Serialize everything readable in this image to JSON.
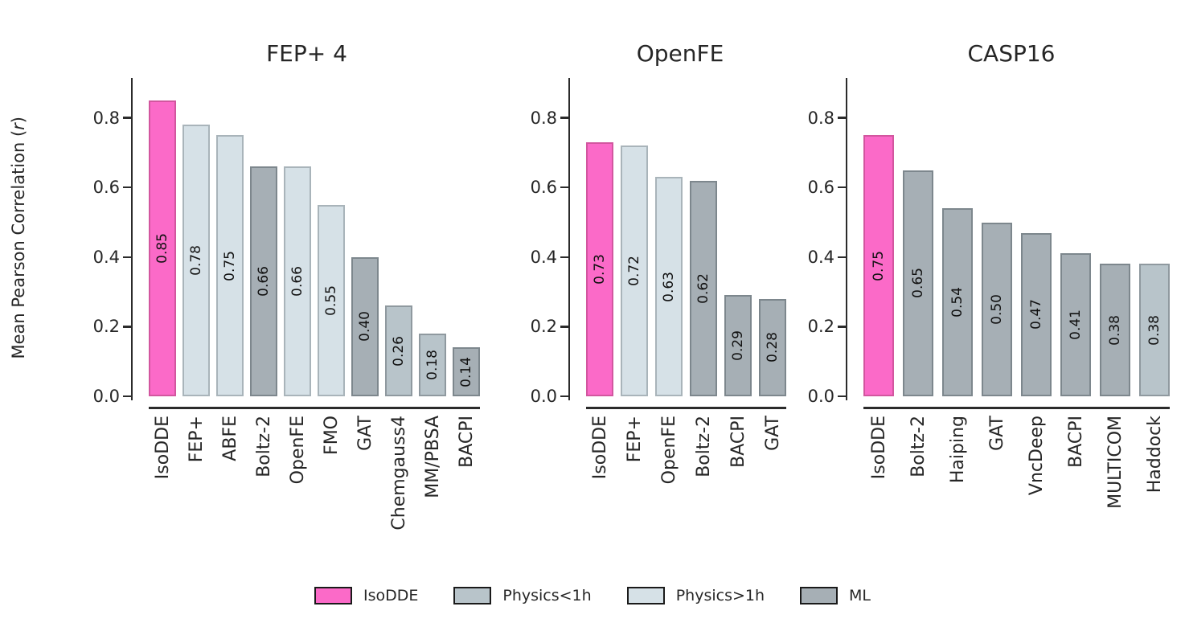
{
  "figure": {
    "ylabel_prefix": "Mean Pearson Correlation (",
    "ylabel_italic": "r",
    "ylabel_suffix": ")"
  },
  "chart_data": {
    "type": "bar",
    "title": "",
    "ylabel": "Mean Pearson Correlation (r)",
    "ylim": [
      0,
      0.92
    ],
    "yticks": [
      "0.0",
      "0.2",
      "0.4",
      "0.6",
      "0.8"
    ],
    "grid": false,
    "legend_position": "bottom-center",
    "palette": {
      "isodde": {
        "fill": "#FB6AC8",
        "border": "#D2569F"
      },
      "physics_lt1h": {
        "fill": "#B8C4CA",
        "border": "#8F999F"
      },
      "physics_gt1h": {
        "fill": "#D6E1E7",
        "border": "#A9B4BA"
      },
      "ml": {
        "fill": "#A6AFB5",
        "border": "#7D878D"
      }
    },
    "legend": [
      {
        "label": "IsoDDE",
        "group": "isodde"
      },
      {
        "label": "Physics<1h",
        "group": "physics_lt1h"
      },
      {
        "label": "Physics>1h",
        "group": "physics_gt1h"
      },
      {
        "label": "ML",
        "group": "ml"
      }
    ],
    "panels": [
      {
        "title": "FEP+ 4",
        "categories": [
          "IsoDDE",
          "FEP+",
          "ABFE",
          "Boltz-2",
          "OpenFE",
          "FMO",
          "GAT",
          "Chemgauss4",
          "MM/PBSA",
          "BACPI"
        ],
        "values": [
          0.85,
          0.78,
          0.75,
          0.66,
          0.66,
          0.55,
          0.4,
          0.26,
          0.18,
          0.14
        ],
        "value_labels": [
          "0.85",
          "0.78",
          "0.75",
          "0.66",
          "0.66",
          "0.55",
          "0.40",
          "0.26",
          "0.18",
          "0.14"
        ],
        "groups": [
          "isodde",
          "physics_gt1h",
          "physics_gt1h",
          "ml",
          "physics_gt1h",
          "physics_gt1h",
          "ml",
          "physics_lt1h",
          "physics_lt1h",
          "ml"
        ]
      },
      {
        "title": "OpenFE",
        "categories": [
          "IsoDDE",
          "FEP+",
          "OpenFE",
          "Boltz-2",
          "BACPI",
          "GAT"
        ],
        "values": [
          0.73,
          0.72,
          0.63,
          0.62,
          0.29,
          0.28
        ],
        "value_labels": [
          "0.73",
          "0.72",
          "0.63",
          "0.62",
          "0.29",
          "0.28"
        ],
        "groups": [
          "isodde",
          "physics_gt1h",
          "physics_gt1h",
          "ml",
          "ml",
          "ml"
        ]
      },
      {
        "title": "CASP16",
        "categories": [
          "IsoDDE",
          "Boltz-2",
          "Haiping",
          "GAT",
          "VncDeep",
          "BACPI",
          "MULTICOM",
          "Haddock"
        ],
        "values": [
          0.75,
          0.65,
          0.54,
          0.5,
          0.47,
          0.41,
          0.38,
          0.38
        ],
        "value_labels": [
          "0.75",
          "0.65",
          "0.54",
          "0.50",
          "0.47",
          "0.41",
          "0.38",
          "0.38"
        ],
        "groups": [
          "isodde",
          "ml",
          "ml",
          "ml",
          "ml",
          "ml",
          "ml",
          "physics_lt1h"
        ]
      }
    ]
  }
}
